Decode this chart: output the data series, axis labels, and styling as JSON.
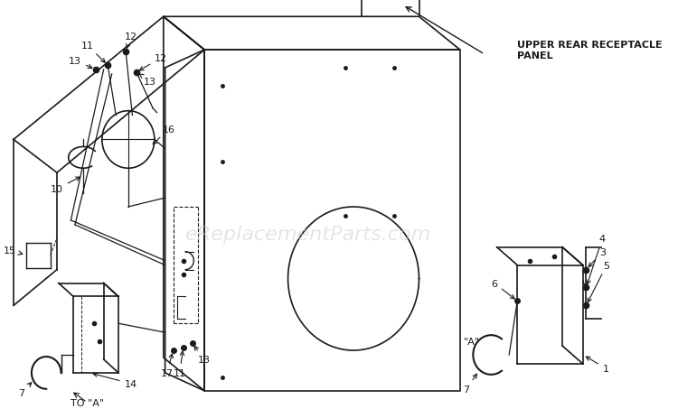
{
  "bg_color": "#ffffff",
  "line_color": "#1a1a1a",
  "watermark_text": "eReplacementParts.com",
  "watermark_color": "#cccccc",
  "label_upper_rear": "UPPER REAR RECEPTACLE\nPANEL",
  "label_a": "\"A\"",
  "label_to_a": "TO \"A\"",
  "figsize": [
    7.5,
    4.64
  ],
  "dpi": 100
}
